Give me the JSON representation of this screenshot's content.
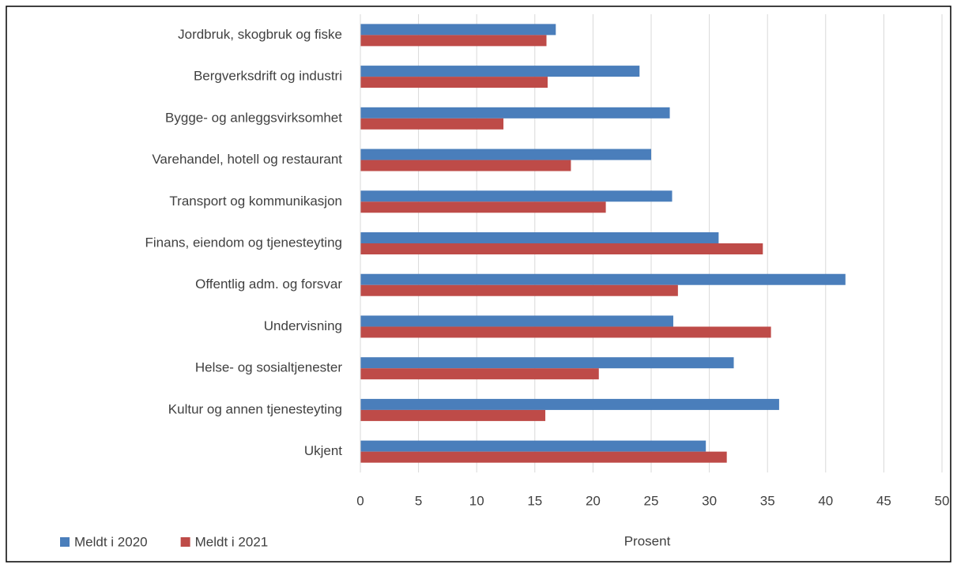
{
  "chart_data": {
    "type": "barh",
    "categories": [
      "Jordbruk, skogbruk og fiske",
      "Bergverksdrift og industri",
      "Bygge- og anleggsvirksomhet",
      "Varehandel, hotell og restaurant",
      "Transport og kommunikasjon",
      "Finans, eiendom og tjenesteyting",
      "Offentlig adm. og forsvar",
      "Undervisning",
      "Helse- og sosialtjenester",
      "Kultur og annen tjenesteyting",
      "Ukjent"
    ],
    "series": [
      {
        "name": "Meldt i 2020",
        "color": "#4a7ebb",
        "values": [
          16.8,
          24.0,
          26.6,
          25.0,
          26.8,
          30.8,
          41.7,
          26.9,
          32.1,
          36.0,
          29.7
        ]
      },
      {
        "name": "Meldt i 2021",
        "color": "#be4b48",
        "values": [
          16.0,
          16.1,
          12.3,
          18.1,
          21.1,
          34.6,
          27.3,
          35.3,
          20.5,
          15.9,
          31.5
        ]
      }
    ],
    "xlabel": "Prosent",
    "xlim": [
      0,
      50
    ],
    "xticks": [
      0,
      5,
      10,
      15,
      20,
      25,
      30,
      35,
      40,
      45,
      50
    ],
    "grid": true,
    "legend": "bottom-left"
  }
}
